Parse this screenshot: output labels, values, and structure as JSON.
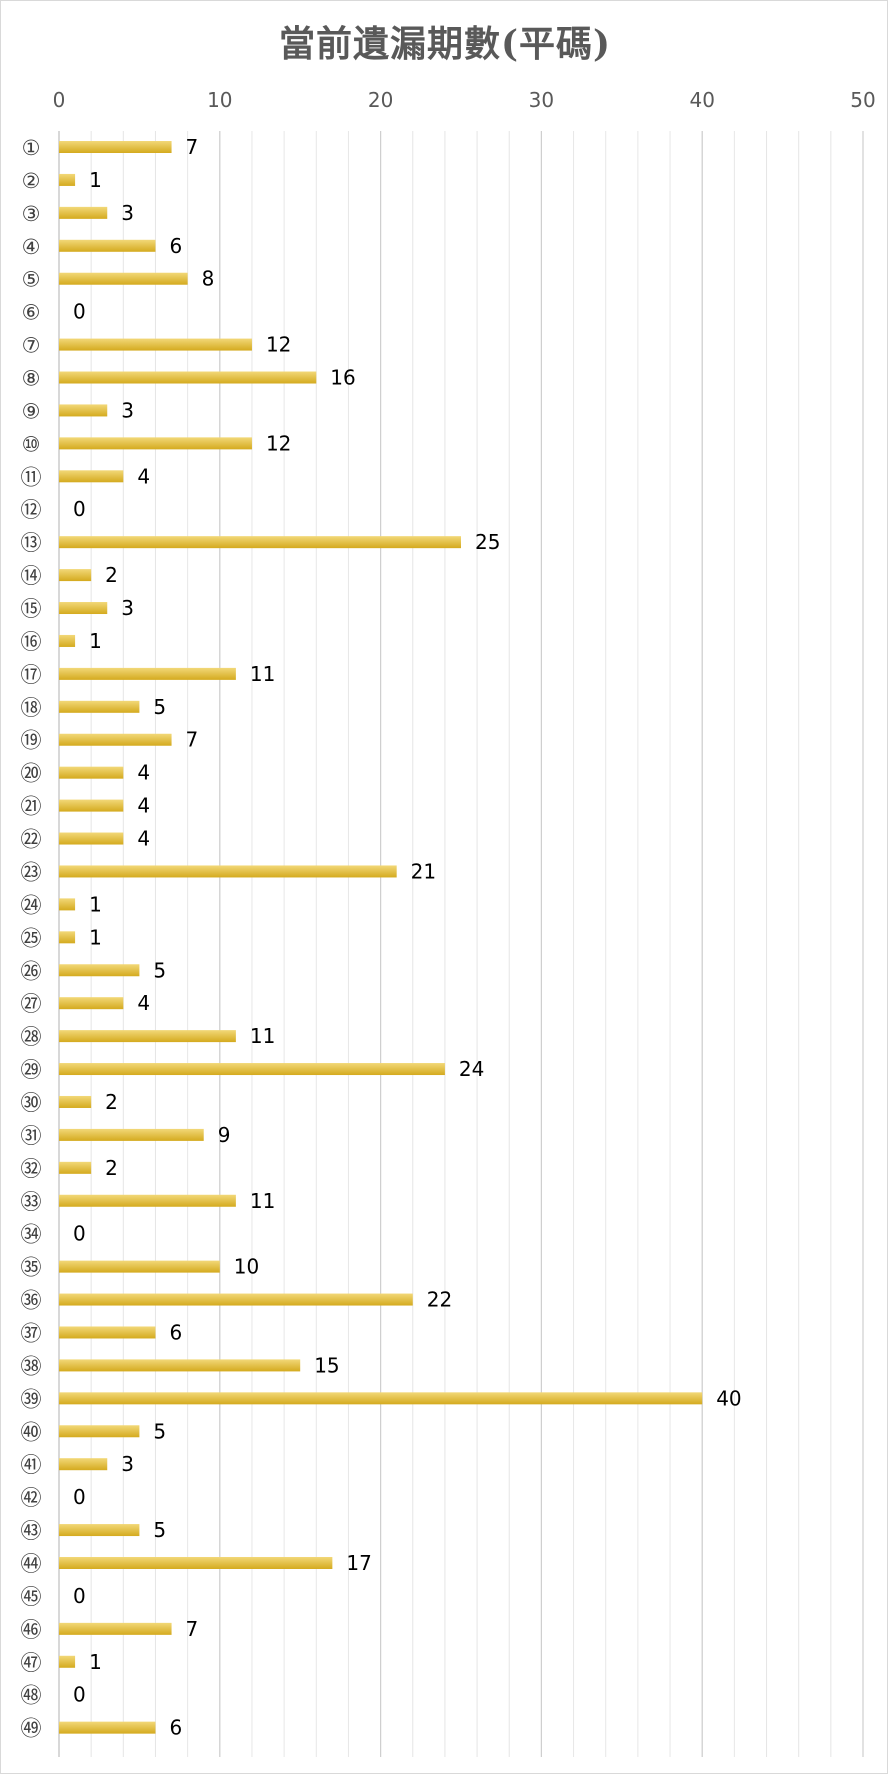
{
  "chart_data": {
    "type": "bar",
    "orientation": "horizontal",
    "title": "當前遺漏期數(平碼)",
    "xlim": [
      0,
      50
    ],
    "x_ticks": [
      0,
      10,
      20,
      30,
      40,
      50
    ],
    "x_axis_position": "top",
    "grid": true,
    "legend": "none",
    "bar_color": "#D4AA1E",
    "bar_highlight_color": "#F2D878",
    "categories": [
      "①",
      "②",
      "③",
      "④",
      "⑤",
      "⑥",
      "⑦",
      "⑧",
      "⑨",
      "⑩",
      "⑪",
      "⑫",
      "⑬",
      "⑭",
      "⑮",
      "⑯",
      "⑰",
      "⑱",
      "⑲",
      "⑳",
      "㉑",
      "㉒",
      "㉓",
      "㉔",
      "㉕",
      "㉖",
      "㉗",
      "㉘",
      "㉙",
      "㉚",
      "㉛",
      "㉜",
      "㉝",
      "㉞",
      "㉟",
      "㊱",
      "㊲",
      "㊳",
      "㊴",
      "㊵",
      "㊶",
      "㊷",
      "㊸",
      "㊹",
      "㊺",
      "㊻",
      "㊼",
      "㊽",
      "㊾"
    ],
    "values": [
      7,
      1,
      3,
      6,
      8,
      0,
      12,
      16,
      3,
      12,
      4,
      0,
      25,
      2,
      3,
      1,
      11,
      5,
      7,
      4,
      4,
      4,
      21,
      1,
      1,
      5,
      4,
      11,
      24,
      2,
      9,
      2,
      11,
      0,
      10,
      22,
      6,
      15,
      40,
      5,
      3,
      0,
      5,
      17,
      0,
      7,
      1,
      0,
      6
    ]
  }
}
